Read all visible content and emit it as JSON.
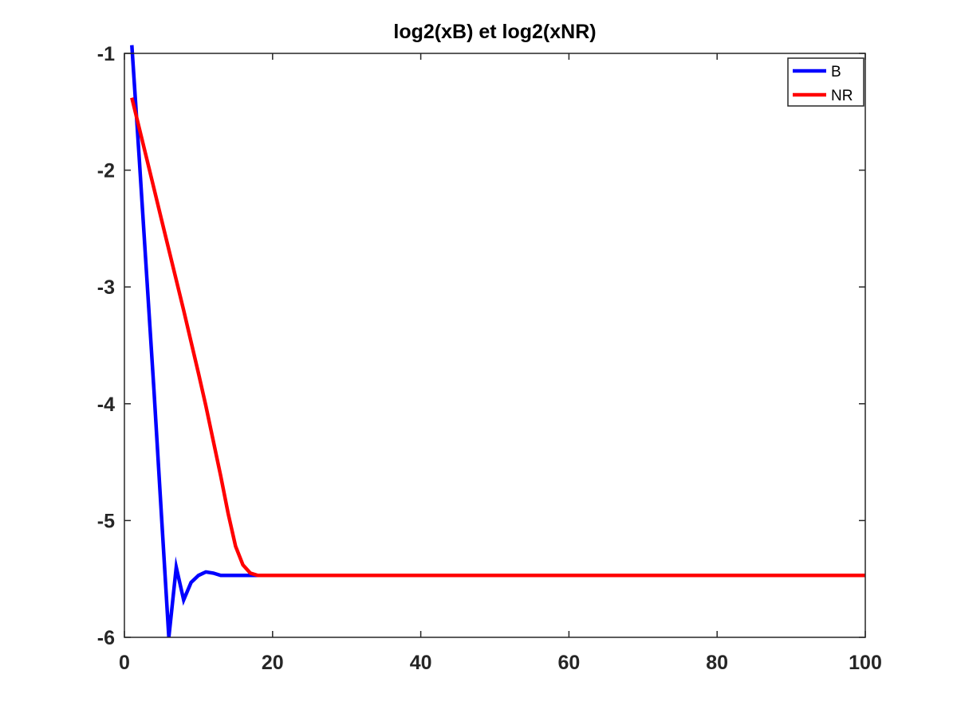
{
  "chart_data": {
    "type": "line",
    "title": "log2(xB) et log2(xNR)",
    "xlabel": "",
    "ylabel": "",
    "xlim": [
      0,
      100
    ],
    "ylim": [
      -6,
      -1
    ],
    "xticks": [
      0,
      20,
      40,
      60,
      80,
      100
    ],
    "yticks": [
      -6,
      -5,
      -4,
      -3,
      -2,
      -1
    ],
    "xtick_labels": [
      "0",
      "20",
      "40",
      "60",
      "80",
      "100"
    ],
    "ytick_labels": [
      "-6",
      "-5",
      "-4",
      "-3",
      "-2",
      "-1"
    ],
    "grid": false,
    "legend_position": "top-right",
    "series": [
      {
        "name": "B",
        "color": "#0000ff",
        "x": [
          1,
          2,
          3,
          4,
          5,
          6,
          7,
          8,
          9,
          10,
          11,
          12,
          13,
          14,
          15,
          16,
          17,
          18,
          100
        ],
        "y": [
          -0.93,
          -1.9,
          -2.9,
          -3.9,
          -4.95,
          -6.0,
          -5.4,
          -5.68,
          -5.53,
          -5.47,
          -5.44,
          -5.45,
          -5.47,
          -5.47,
          -5.47,
          -5.47,
          -5.47,
          -5.47,
          -5.47
        ]
      },
      {
        "name": "NR",
        "color": "#ff0000",
        "x": [
          1,
          2,
          3,
          4,
          5,
          6,
          7,
          8,
          9,
          10,
          11,
          12,
          13,
          14,
          15,
          16,
          17,
          18,
          100
        ],
        "y": [
          -1.38,
          -1.64,
          -1.9,
          -2.16,
          -2.42,
          -2.68,
          -2.94,
          -3.2,
          -3.47,
          -3.74,
          -4.02,
          -4.32,
          -4.62,
          -4.94,
          -5.22,
          -5.38,
          -5.45,
          -5.47,
          -5.47
        ]
      }
    ]
  }
}
